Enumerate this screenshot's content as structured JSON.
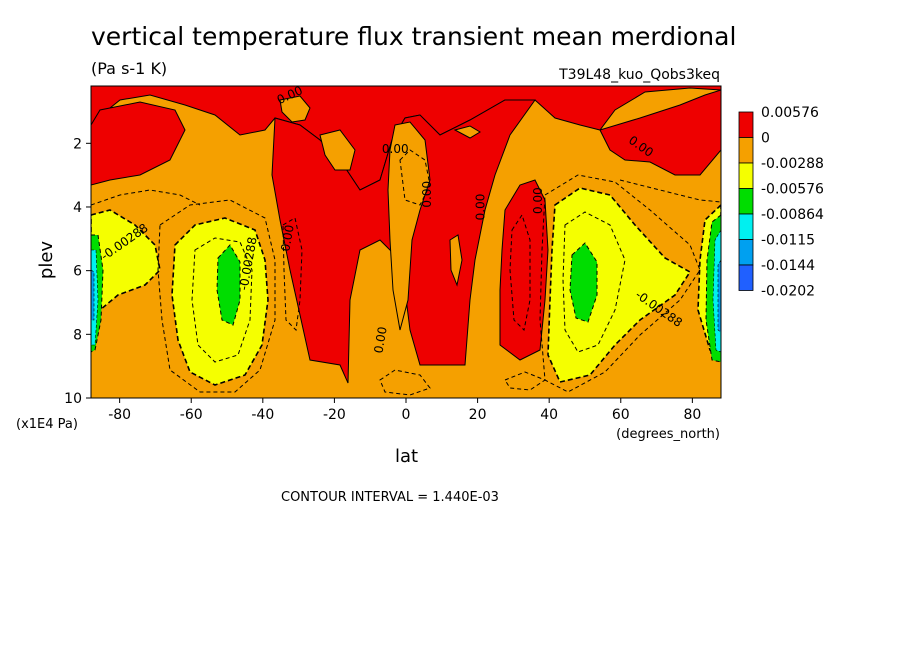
{
  "chart_data": {
    "type": "contour",
    "title": "vertical temperature flux transient mean merdional",
    "units": "(Pa s-1 K)",
    "run_label": "T39L48_kuo_Qobs3keq",
    "xlabel": "lat",
    "xunits": "(degrees_north)",
    "ylabel": "plev",
    "yunits": "(x1E4 Pa)",
    "x_ticks": [
      -80,
      -60,
      -40,
      -20,
      0,
      20,
      40,
      60,
      80
    ],
    "x_tick_labels": [
      "-80",
      "-60",
      "-40",
      "-20",
      "0",
      "20",
      "40",
      "60",
      "80"
    ],
    "y_ticks": [
      2,
      4,
      6,
      8,
      10
    ],
    "y_tick_labels": [
      "2",
      "4",
      "6",
      "8",
      "10"
    ],
    "xlim": [
      -88,
      88
    ],
    "ylim": [
      10,
      0.2
    ],
    "contour_interval_text": "CONTOUR INTERVAL = 1.440E-03",
    "contour_labels": [
      {
        "text": "0.00",
        "lat": -32,
        "plev": 5.0,
        "angle": 80
      },
      {
        "text": "0.00",
        "lat": -3,
        "plev": 2.3,
        "angle": 0
      },
      {
        "text": "0.00",
        "lat": 7,
        "plev": 3.6,
        "angle": 90
      },
      {
        "text": "0.00",
        "lat": 22,
        "plev": 4.0,
        "angle": 90
      },
      {
        "text": "0.00",
        "lat": 38,
        "plev": 3.8,
        "angle": 90
      },
      {
        "text": "0.00",
        "lat": -6,
        "plev": 8.2,
        "angle": 80
      },
      {
        "text": "0.00",
        "lat": 65,
        "plev": 2.2,
        "angle": -35
      },
      {
        "text": "0.00",
        "lat": -32,
        "plev": 0.6,
        "angle": 25
      },
      {
        "text": "-0.00288",
        "lat": -78,
        "plev": 5.2,
        "angle": 35
      },
      {
        "text": "-0.00288",
        "lat": -43,
        "plev": 5.8,
        "angle": 80
      },
      {
        "text": "-0.00288",
        "lat": 70,
        "plev": 7.3,
        "angle": -35
      }
    ],
    "legend": {
      "levels": [
        "0.00576",
        "0",
        "-0.00288",
        "-0.00576",
        "-0.00864",
        "-0.0115",
        "-0.0144",
        "-0.0202"
      ],
      "colors": [
        "#ee0000",
        "#f5a000",
        "#f5ff00",
        "#00dd00",
        "#00f0f0",
        "#00a0f0",
        "#2060ff"
      ]
    },
    "colors": {
      "background_field": "#f5a000",
      "positive": "#ee0000",
      "neg1": "#f5ff00",
      "neg2": "#00dd00",
      "neg3": "#00f0f0",
      "neg4": "#00a0f0"
    },
    "grid": false
  }
}
